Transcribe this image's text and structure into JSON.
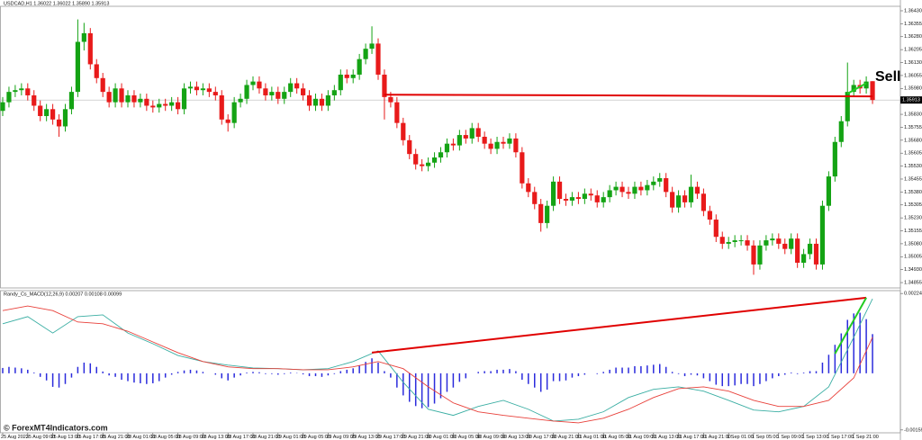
{
  "chart_data": [
    {
      "type": "candlestick",
      "title": "USDCAD,H1 1.36022 1.36022 1.35890 1.35913",
      "ylim": [
        1.34824,
        1.36456
      ],
      "yticks": [
        {
          "value": 1.3643,
          "label": "1.36430"
        },
        1.36355,
        {
          "value": 1.3628,
          "label": "1.36280"
        },
        1.36205,
        {
          "value": 1.3613,
          "label": "1.36130"
        },
        1.36055,
        {
          "value": 1.3598,
          "label": "1.35980"
        },
        {
          "value": 1.3583,
          "label": "1.35830"
        },
        1.35755,
        {
          "value": 1.3568,
          "label": "1.35680"
        },
        1.35605,
        {
          "value": 1.3553,
          "label": "1.35530"
        },
        1.35455,
        {
          "value": 1.3538,
          "label": "1.35380"
        },
        1.35305,
        {
          "value": 1.3523,
          "label": "1.35230"
        },
        1.35155,
        {
          "value": 1.3508,
          "label": "1.35080"
        },
        1.35005,
        {
          "value": 1.3493,
          "label": "1.34930"
        },
        1.34855
      ],
      "current_price": 1.35913,
      "up_color": "#14a314",
      "down_color": "#e81a1a",
      "open": [
        1.3585,
        1.359,
        1.3596,
        1.3597,
        1.3598,
        1.3594,
        1.3588,
        1.3582,
        1.3586,
        1.358,
        1.3576,
        1.3586,
        1.3596,
        1.3625,
        1.363,
        1.3612,
        1.3604,
        1.3596,
        1.359,
        1.3598,
        1.359,
        1.3594,
        1.359,
        1.3592,
        1.3588,
        1.3587,
        1.3589,
        1.3588,
        1.359,
        1.3586,
        1.3598,
        1.3599,
        1.3597,
        1.3598,
        1.3596,
        1.3594,
        1.358,
        1.3578,
        1.359,
        1.3592,
        1.36,
        1.3602,
        1.3598,
        1.3594,
        1.3596,
        1.3592,
        1.3596,
        1.3601,
        1.3598,
        1.3594,
        1.3588,
        1.3592,
        1.3588,
        1.3594,
        1.3597,
        1.3606,
        1.3604,
        1.3606,
        1.3615,
        1.3621,
        1.3624,
        1.3606,
        1.3593,
        1.359,
        1.3578,
        1.3568,
        1.356,
        1.3554,
        1.3553,
        1.3555,
        1.3558,
        1.3561,
        1.3566,
        1.3565,
        1.3571,
        1.3569,
        1.3575,
        1.357,
        1.3566,
        1.3563,
        1.3567,
        1.3566,
        1.3569,
        1.3561,
        1.3543,
        1.3538,
        1.3531,
        1.352,
        1.353,
        1.3544,
        1.3534,
        1.3533,
        1.3535,
        1.3534,
        1.3537,
        1.3536,
        1.3532,
        1.3535,
        1.3539,
        1.3541,
        1.3538,
        1.3537,
        1.3541,
        1.3539,
        1.3542,
        1.3544,
        1.3546,
        1.3538,
        1.3529,
        1.3536,
        1.3532,
        1.3541,
        1.3537,
        1.3527,
        1.3522,
        1.3512,
        1.3508,
        1.3509,
        1.351,
        1.351,
        1.3507,
        1.3496,
        1.3507,
        1.351,
        1.3511,
        1.3508,
        1.3505,
        1.3511,
        1.3497,
        1.3502,
        1.3508,
        1.3496,
        1.353,
        1.3547,
        1.3567,
        1.3579,
        1.3596,
        1.36,
        1.3598,
        1.36022
      ],
      "high": [
        1.3593,
        1.3599,
        1.36,
        1.3601,
        1.3601,
        1.3597,
        1.3591,
        1.3589,
        1.3589,
        1.3583,
        1.3589,
        1.3599,
        1.3638,
        1.3636,
        1.3633,
        1.3615,
        1.3607,
        1.3599,
        1.3601,
        1.3601,
        1.3597,
        1.3597,
        1.3595,
        1.3595,
        1.3591,
        1.3592,
        1.3592,
        1.3593,
        1.3593,
        1.3601,
        1.3602,
        1.3602,
        1.3601,
        1.3601,
        1.3599,
        1.3597,
        1.3583,
        1.3593,
        1.3595,
        1.3603,
        1.3605,
        1.3605,
        1.3601,
        1.3599,
        1.3599,
        1.3599,
        1.3604,
        1.3604,
        1.3601,
        1.3597,
        1.3595,
        1.3595,
        1.3597,
        1.36,
        1.3609,
        1.3609,
        1.3609,
        1.3618,
        1.3624,
        1.3634,
        1.3627,
        1.3609,
        1.3596,
        1.3593,
        1.3581,
        1.3571,
        1.3563,
        1.3557,
        1.3558,
        1.3561,
        1.3564,
        1.3569,
        1.3569,
        1.3574,
        1.3574,
        1.3578,
        1.3578,
        1.3573,
        1.3569,
        1.357,
        1.357,
        1.3572,
        1.3572,
        1.3564,
        1.3546,
        1.3541,
        1.3534,
        1.3533,
        1.3547,
        1.3547,
        1.3537,
        1.3538,
        1.3538,
        1.354,
        1.354,
        1.3539,
        1.3538,
        1.3542,
        1.3544,
        1.3544,
        1.3541,
        1.3544,
        1.3544,
        1.3545,
        1.3547,
        1.3549,
        1.3549,
        1.3541,
        1.3539,
        1.3539,
        1.3548,
        1.3544,
        1.354,
        1.353,
        1.3525,
        1.3515,
        1.3512,
        1.3513,
        1.3513,
        1.3513,
        1.351,
        1.351,
        1.3513,
        1.3514,
        1.3514,
        1.3511,
        1.3514,
        1.3514,
        1.3505,
        1.3511,
        1.3511,
        1.3533,
        1.355,
        1.357,
        1.3582,
        1.3613,
        1.3603,
        1.3603,
        1.3605,
        1.36022
      ],
      "low": [
        1.3582,
        1.3587,
        1.3593,
        1.3594,
        1.3591,
        1.3585,
        1.3579,
        1.3579,
        1.3577,
        1.357,
        1.3573,
        1.3583,
        1.3593,
        1.362,
        1.3609,
        1.3601,
        1.3593,
        1.3587,
        1.3587,
        1.3587,
        1.3587,
        1.3587,
        1.3587,
        1.3585,
        1.3584,
        1.3584,
        1.3585,
        1.3585,
        1.3583,
        1.3583,
        1.3595,
        1.3594,
        1.3594,
        1.3593,
        1.3591,
        1.3577,
        1.3573,
        1.3575,
        1.3587,
        1.3589,
        1.3597,
        1.3595,
        1.3591,
        1.3591,
        1.3589,
        1.3589,
        1.3593,
        1.3595,
        1.3591,
        1.3585,
        1.3585,
        1.3585,
        1.3585,
        1.3591,
        1.3594,
        1.3601,
        1.3601,
        1.3603,
        1.3612,
        1.3618,
        1.3603,
        1.358,
        1.3587,
        1.3575,
        1.3565,
        1.3557,
        1.3551,
        1.355,
        1.355,
        1.3552,
        1.3555,
        1.3558,
        1.3562,
        1.3562,
        1.3566,
        1.3566,
        1.3567,
        1.3563,
        1.356,
        1.356,
        1.3563,
        1.3563,
        1.3558,
        1.354,
        1.3535,
        1.3528,
        1.3515,
        1.3517,
        1.3527,
        1.3531,
        1.353,
        1.353,
        1.3531,
        1.3531,
        1.3533,
        1.3529,
        1.3529,
        1.3532,
        1.3536,
        1.3535,
        1.3534,
        1.3534,
        1.3536,
        1.3536,
        1.3539,
        1.3541,
        1.3535,
        1.3526,
        1.3526,
        1.3529,
        1.3529,
        1.3534,
        1.3524,
        1.3519,
        1.3509,
        1.3505,
        1.3505,
        1.3506,
        1.3507,
        1.3504,
        1.349,
        1.3493,
        1.3504,
        1.3507,
        1.3505,
        1.3502,
        1.3502,
        1.3494,
        1.3494,
        1.3499,
        1.3493,
        1.3493,
        1.3527,
        1.3544,
        1.3564,
        1.3576,
        1.3593,
        1.3595,
        1.3595,
        1.3589
      ],
      "close": [
        1.359,
        1.3596,
        1.3597,
        1.3598,
        1.3594,
        1.3588,
        1.3582,
        1.3586,
        1.358,
        1.3576,
        1.3586,
        1.3596,
        1.3625,
        1.363,
        1.3612,
        1.3604,
        1.3596,
        1.359,
        1.3598,
        1.359,
        1.3594,
        1.359,
        1.3592,
        1.3588,
        1.3587,
        1.3589,
        1.3588,
        1.359,
        1.3586,
        1.3598,
        1.3599,
        1.3597,
        1.3598,
        1.3596,
        1.3594,
        1.358,
        1.3578,
        1.359,
        1.3592,
        1.36,
        1.3602,
        1.3598,
        1.3594,
        1.3596,
        1.3592,
        1.3596,
        1.3601,
        1.3598,
        1.3594,
        1.3588,
        1.3592,
        1.3588,
        1.3594,
        1.3597,
        1.3606,
        1.3604,
        1.3606,
        1.3615,
        1.3621,
        1.3624,
        1.3606,
        1.3593,
        1.359,
        1.3578,
        1.3568,
        1.356,
        1.3554,
        1.3553,
        1.3555,
        1.3558,
        1.3561,
        1.3566,
        1.3565,
        1.3571,
        1.3569,
        1.3575,
        1.357,
        1.3566,
        1.3563,
        1.3567,
        1.3566,
        1.3569,
        1.3561,
        1.3543,
        1.3538,
        1.3531,
        1.352,
        1.353,
        1.3544,
        1.3534,
        1.3533,
        1.3535,
        1.3534,
        1.3537,
        1.3536,
        1.3532,
        1.3535,
        1.3539,
        1.3541,
        1.3538,
        1.3537,
        1.3541,
        1.3539,
        1.3542,
        1.3544,
        1.3546,
        1.3538,
        1.3529,
        1.3536,
        1.3532,
        1.3541,
        1.3537,
        1.3527,
        1.3522,
        1.3512,
        1.3508,
        1.3509,
        1.351,
        1.351,
        1.3507,
        1.3496,
        1.3507,
        1.351,
        1.3511,
        1.3508,
        1.3505,
        1.3511,
        1.3497,
        1.3502,
        1.3508,
        1.3496,
        1.353,
        1.3547,
        1.3567,
        1.3579,
        1.3596,
        1.36,
        1.3598,
        1.3602,
        1.35913
      ],
      "trendlines": [
        {
          "color": "#e00000",
          "x": [
            61,
            139
          ],
          "y": [
            1.35944,
            1.35934
          ]
        },
        {
          "color": "#22cc22",
          "x": [
            135,
            138
          ],
          "y": [
            1.3595,
            1.3601
          ]
        }
      ],
      "annotation": "Sell"
    },
    {
      "type": "macd",
      "title": "Randy_Cs_MACD(12,26,9) 0.00207 0.00108 0.00099",
      "ylim": [
        -0.00167,
        0.00232
      ],
      "yticks": [
        0.00224,
        -0.00159
      ],
      "categories": [
        "25 Aug 2023",
        null,
        null,
        null,
        "25 Aug 09:00",
        null,
        null,
        null,
        "25 Aug 13:00",
        null,
        null,
        null,
        "25 Aug 17:00",
        null,
        null,
        null,
        "25 Aug 21:00",
        null,
        null,
        null,
        "28 Aug 01:00",
        null,
        null,
        null,
        "28 Aug 05:00",
        null,
        null,
        null,
        "28 Aug 09:00",
        null,
        null,
        null,
        "28 Aug 13:00",
        null,
        null,
        null,
        "28 Aug 17:00",
        null,
        null,
        null,
        "28 Aug 21:00",
        null,
        null,
        null,
        "29 Aug 01:00",
        null,
        null,
        null,
        "29 Aug 05:00",
        null,
        null,
        null,
        "29 Aug 09:00",
        null,
        null,
        null,
        "29 Aug 13:00",
        null,
        null,
        null,
        "29 Aug 17:00",
        null,
        null,
        null,
        "29 Aug 21:00",
        null,
        null,
        null,
        "30 Aug 01:00",
        null,
        null,
        null,
        "30 Aug 05:00",
        null,
        null,
        null,
        "30 Aug 09:00",
        null,
        null,
        null,
        "30 Aug 13:00",
        null,
        null,
        null,
        "30 Aug 17:00",
        null,
        null,
        null,
        "30 Aug 21:00",
        null,
        null,
        null,
        "31 Aug 01:00",
        null,
        null,
        null,
        "31 Aug 05:00",
        null,
        null,
        null,
        "31 Aug 09:00",
        null,
        null,
        null,
        "31 Aug 13:00",
        null,
        null,
        null,
        "31 Aug 17:00",
        null,
        null,
        null,
        "31 Aug 21:00",
        null,
        null,
        null,
        "1 Sep 01:00",
        null,
        null,
        null,
        "1 Sep 05:00",
        null,
        null,
        null,
        "1 Sep 09:00",
        null,
        null,
        null,
        "1 Sep 13:00",
        null,
        null,
        null,
        "1 Sep 17:00",
        null,
        null,
        null,
        "1 Sep 21:00",
        null,
        null,
        null
      ],
      "histogram": {
        "color": "#2b2bdc",
        "values": [
          0.00015,
          0.00018,
          0.00016,
          0.00014,
          0.0001,
          2e-05,
          -0.0001,
          -0.0002,
          -0.00038,
          -0.0004,
          -0.0003,
          -0.00012,
          0.00018,
          0.0003,
          0.00028,
          0.00018,
          5e-05,
          -6e-05,
          -0.0001,
          -0.00018,
          -0.00022,
          -0.00026,
          -0.00028,
          -0.0003,
          -0.00028,
          -0.00022,
          -0.00012,
          -4e-05,
          4e-05,
          8e-05,
          0.0001,
          8e-05,
          4e-05,
          0,
          -4e-05,
          -0.00014,
          -0.0002,
          -0.00012,
          -6e-05,
          2e-05,
          4e-05,
          3e-05,
          -2e-05,
          -2e-05,
          -4e-05,
          -2e-05,
          2e-05,
          1e-05,
          -3e-05,
          -8e-05,
          -8e-05,
          -0.0001,
          -6e-05,
          -2e-05,
          6e-05,
          0.0001,
          0.00014,
          0.00022,
          0.00032,
          0.00042,
          0.0003,
          6e-05,
          -0.00012,
          -0.0004,
          -0.00062,
          -0.0008,
          -0.00092,
          -0.00098,
          -0.00095,
          -0.00085,
          -0.0007,
          -0.00052,
          -0.0004,
          -0.00024,
          -0.00014,
          0,
          4e-05,
          6e-05,
          6e-05,
          0.0001,
          0.0001,
          0.00012,
          6e-05,
          -0.00018,
          -0.0003,
          -0.0004,
          -0.00052,
          -0.00046,
          -0.00022,
          -0.00022,
          -0.0002,
          -0.00012,
          -8e-05,
          -4e-05,
          0,
          -2e-05,
          4e-05,
          0.0001,
          0.00016,
          0.00016,
          0.00016,
          0.0002,
          0.0002,
          0.00022,
          0.00024,
          0.00026,
          0.00018,
          4e-05,
          -2e-05,
          -8e-05,
          -4e-05,
          -6e-05,
          -0.00014,
          -0.00022,
          -0.00032,
          -0.00036,
          -0.00036,
          -0.00034,
          -0.0003,
          -0.0003,
          -0.00036,
          -0.0003,
          -0.00022,
          -0.00014,
          -8e-05,
          -4e-05,
          2e-05,
          -2e-05,
          2e-05,
          6e-05,
          6e-05,
          0.0003,
          0.00052,
          0.0008,
          0.00112,
          0.0015,
          0.00168,
          0.0017,
          0.00152,
          0.0011
        ]
      },
      "series": [
        {
          "color": "#3aaea3",
          "x": [
            0,
            4,
            8,
            12,
            16,
            20,
            24,
            28,
            32,
            36,
            40,
            44,
            48,
            52,
            56,
            60,
            64,
            68,
            72,
            76,
            80,
            84,
            88,
            92,
            96,
            100,
            104,
            108,
            112,
            116,
            120,
            124,
            128,
            132,
            136,
            139
          ],
          "values": [
            0.00139,
            0.00159,
            0.00113,
            0.00159,
            0.00164,
            0.00113,
            0.00083,
            0.0005,
            0.00033,
            0.00023,
            0.00015,
            0.00013,
            0.0001,
            0.00013,
            0.00033,
            0.00063,
            -0.00025,
            -0.00101,
            -0.00118,
            -0.00093,
            -0.00076,
            -0.00101,
            -0.00134,
            -0.00129,
            -0.00108,
            -0.00068,
            -0.00045,
            -0.00038,
            -0.0005,
            -0.00076,
            -0.00103,
            -0.00108,
            -0.00093,
            -0.00038,
            0.00101,
            0.00209
          ]
        },
        {
          "color": "#e8403a",
          "x": [
            0,
            4,
            8,
            12,
            16,
            20,
            24,
            28,
            32,
            36,
            40,
            44,
            48,
            52,
            56,
            60,
            64,
            68,
            72,
            76,
            80,
            84,
            88,
            92,
            96,
            100,
            104,
            108,
            112,
            116,
            120,
            124,
            128,
            132,
            136,
            139
          ],
          "values": [
            0.00176,
            0.00189,
            0.00176,
            0.00144,
            0.00139,
            0.00118,
            0.00088,
            0.00058,
            0.00033,
            0.00018,
            0.00013,
            0.00013,
            0.0001,
            0.0001,
            0.00018,
            0.00033,
            0.00013,
            -0.00038,
            -0.00083,
            -0.00108,
            -0.00118,
            -0.00126,
            -0.00134,
            -0.00139,
            -0.00126,
            -0.00101,
            -0.00068,
            -0.00043,
            -0.00038,
            -0.0005,
            -0.00076,
            -0.00093,
            -0.00093,
            -0.00076,
            -0.00013,
            0.00101
          ]
        }
      ],
      "trendlines": [
        {
          "color": "#e00000",
          "x": [
            59,
            138
          ],
          "y": [
            0.00058,
            0.00212
          ]
        },
        {
          "color": "#22cc22",
          "x": [
            133,
            138
          ],
          "y": [
            0.00055,
            0.00212
          ]
        }
      ]
    }
  ],
  "watermark": "© ForexMT4Indicators.com"
}
